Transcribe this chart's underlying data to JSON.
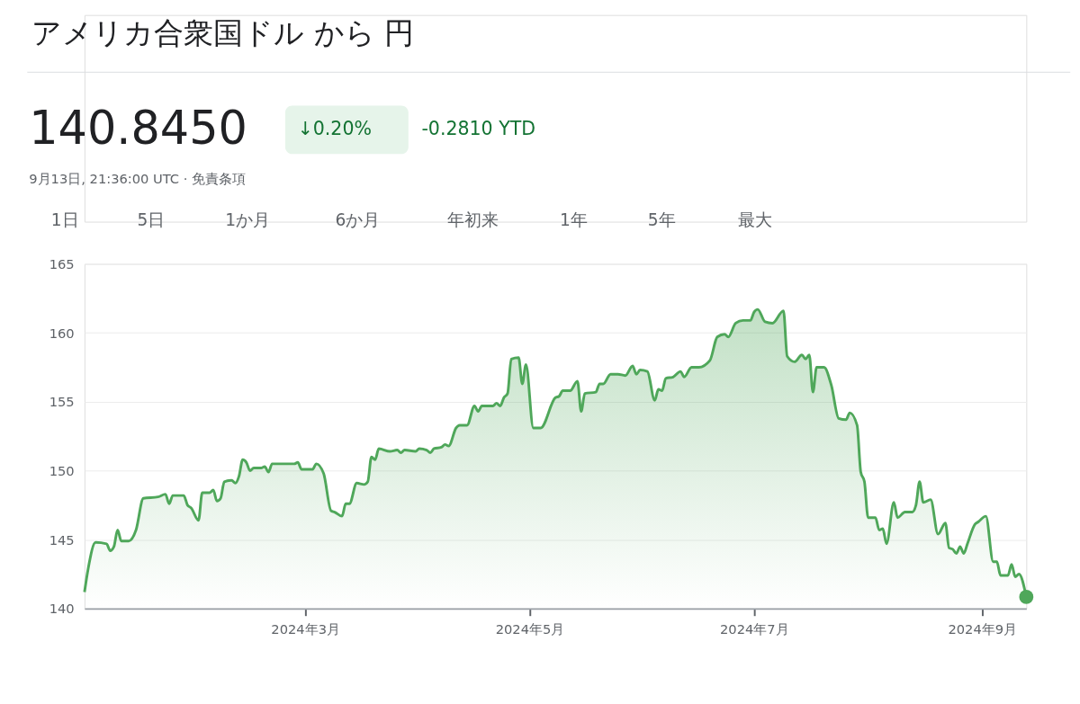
{
  "chart_data": {
    "type": "area",
    "title": "アメリカ合衆国ドル から 円",
    "subtitle": "140.8450",
    "annotations": [
      "↓0.20%",
      "-0.2810 YTD",
      "9月13日, 21:36:00 UTC · 免責条項",
      "1日",
      "5日",
      "1か月",
      "6か月",
      "年初来",
      "1年",
      "5年",
      "最大"
    ],
    "xlim": [
      "2024-01-01",
      "2024-09-13"
    ],
    "xticks": [
      {
        "value": "2024-03-01",
        "label": "2024年3月"
      },
      {
        "value": "2024-05-01",
        "label": "2024年5月"
      },
      {
        "value": "2024-07-01",
        "label": "2024年7月"
      },
      {
        "value": "2024-09-01",
        "label": "2024年9月"
      }
    ],
    "ylim": [
      140,
      165
    ],
    "yticks": [
      140,
      145,
      150,
      155,
      160,
      165
    ],
    "grid": "y",
    "x": [
      "2024-01-01",
      "2024-01-02",
      "2024-01-04",
      "2024-01-07",
      "2024-01-08",
      "2024-01-09",
      "2024-01-10",
      "2024-01-11",
      "2024-01-13",
      "2024-01-15",
      "2024-01-17",
      "2024-01-21",
      "2024-01-23",
      "2024-01-24",
      "2024-01-25",
      "2024-01-28",
      "2024-01-29",
      "2024-01-30",
      "2024-02-01",
      "2024-02-02",
      "2024-02-04",
      "2024-02-05",
      "2024-02-06",
      "2024-02-07",
      "2024-02-08",
      "2024-02-10",
      "2024-02-11",
      "2024-02-12",
      "2024-02-13",
      "2024-02-14",
      "2024-02-15",
      "2024-02-16",
      "2024-02-18",
      "2024-02-19",
      "2024-02-20",
      "2024-02-21",
      "2024-02-24",
      "2024-02-27",
      "2024-02-28",
      "2024-02-29",
      "2024-03-03",
      "2024-03-04",
      "2024-03-06",
      "2024-03-08",
      "2024-03-09",
      "2024-03-11",
      "2024-03-12",
      "2024-03-13",
      "2024-03-15",
      "2024-03-17",
      "2024-03-18",
      "2024-03-19",
      "2024-03-20",
      "2024-03-21",
      "2024-03-24",
      "2024-03-26",
      "2024-03-27",
      "2024-03-28",
      "2024-03-31",
      "2024-04-01",
      "2024-04-03",
      "2024-04-04",
      "2024-04-05",
      "2024-04-07",
      "2024-04-08",
      "2024-04-09",
      "2024-04-11",
      "2024-04-12",
      "2024-04-14",
      "2024-04-16",
      "2024-04-17",
      "2024-04-18",
      "2024-04-21",
      "2024-04-22",
      "2024-04-23",
      "2024-04-24",
      "2024-04-25",
      "2024-04-26",
      "2024-04-28",
      "2024-04-29",
      "2024-04-30",
      "2024-05-02",
      "2024-05-04",
      "2024-05-08",
      "2024-05-09",
      "2024-05-10",
      "2024-05-12",
      "2024-05-14",
      "2024-05-15",
      "2024-05-16",
      "2024-05-19",
      "2024-05-20",
      "2024-05-21",
      "2024-05-23",
      "2024-05-25",
      "2024-05-27",
      "2024-05-29",
      "2024-05-30",
      "2024-05-31",
      "2024-06-02",
      "2024-06-04",
      "2024-06-05",
      "2024-06-06",
      "2024-06-07",
      "2024-06-09",
      "2024-06-11",
      "2024-06-12",
      "2024-06-14",
      "2024-06-16",
      "2024-06-19",
      "2024-06-21",
      "2024-06-23",
      "2024-06-24",
      "2024-06-26",
      "2024-06-28",
      "2024-06-30",
      "2024-07-01",
      "2024-07-02",
      "2024-07-04",
      "2024-07-06",
      "2024-07-09",
      "2024-07-10",
      "2024-07-12",
      "2024-07-14",
      "2024-07-15",
      "2024-07-16",
      "2024-07-17",
      "2024-07-18",
      "2024-07-20",
      "2024-07-22",
      "2024-07-24",
      "2024-07-26",
      "2024-07-27",
      "2024-07-29",
      "2024-07-30",
      "2024-07-31",
      "2024-08-01",
      "2024-08-03",
      "2024-08-04",
      "2024-08-05",
      "2024-08-06",
      "2024-08-08",
      "2024-08-09",
      "2024-08-11",
      "2024-08-13",
      "2024-08-14",
      "2024-08-15",
      "2024-08-16",
      "2024-08-18",
      "2024-08-20",
      "2024-08-22",
      "2024-08-23",
      "2024-08-24",
      "2024-08-25",
      "2024-08-26",
      "2024-08-27",
      "2024-08-28",
      "2024-08-30",
      "2024-08-31",
      "2024-09-02",
      "2024-09-04",
      "2024-09-05",
      "2024-09-06",
      "2024-09-08",
      "2024-09-09",
      "2024-09-10",
      "2024-09-11",
      "2024-09-13"
    ],
    "series": [
      {
        "color": "#4fa75a",
        "values": [
          141.2,
          142.9,
          144.8,
          144.7,
          144.2,
          144.5,
          145.7,
          144.9,
          144.9,
          145.7,
          148.0,
          148.1,
          148.3,
          147.6,
          148.2,
          148.2,
          147.5,
          147.3,
          146.4,
          148.4,
          148.4,
          148.6,
          147.8,
          148.0,
          149.2,
          149.3,
          149.1,
          149.6,
          150.8,
          150.6,
          150.0,
          150.2,
          150.2,
          150.3,
          149.9,
          150.5,
          150.5,
          150.5,
          150.6,
          150.1,
          150.1,
          150.5,
          149.8,
          147.1,
          147.0,
          146.7,
          147.6,
          147.6,
          149.1,
          149.0,
          149.2,
          151.0,
          150.8,
          151.6,
          151.4,
          151.5,
          151.3,
          151.5,
          151.4,
          151.6,
          151.5,
          151.3,
          151.6,
          151.7,
          151.9,
          151.8,
          153.1,
          153.3,
          153.3,
          154.7,
          154.3,
          154.7,
          154.7,
          154.9,
          154.7,
          155.3,
          155.6,
          158.1,
          158.2,
          156.3,
          157.7,
          153.1,
          153.1,
          155.3,
          155.4,
          155.8,
          155.8,
          156.5,
          154.3,
          155.6,
          155.7,
          156.3,
          156.3,
          157.0,
          157.0,
          156.9,
          157.6,
          157.0,
          157.3,
          157.2,
          155.1,
          155.9,
          155.8,
          156.7,
          156.8,
          157.2,
          156.8,
          157.5,
          157.5,
          158.0,
          159.7,
          159.9,
          159.7,
          160.7,
          160.9,
          160.9,
          161.5,
          161.7,
          160.8,
          160.7,
          161.6,
          158.3,
          157.9,
          158.4,
          158.1,
          158.4,
          155.7,
          157.5,
          157.5,
          156.2,
          153.8,
          153.7,
          154.2,
          153.3,
          149.9,
          149.2,
          146.6,
          146.6,
          145.7,
          145.8,
          144.7,
          147.7,
          146.6,
          147.0,
          147.0,
          147.5,
          149.2,
          147.7,
          147.9,
          145.4,
          146.2,
          144.4,
          144.3,
          144.0,
          144.5,
          144.0,
          144.7,
          146.1,
          146.3,
          146.7,
          143.4,
          143.4,
          142.4,
          142.4,
          143.2,
          142.3,
          142.5,
          140.845
        ]
      }
    ]
  }
}
